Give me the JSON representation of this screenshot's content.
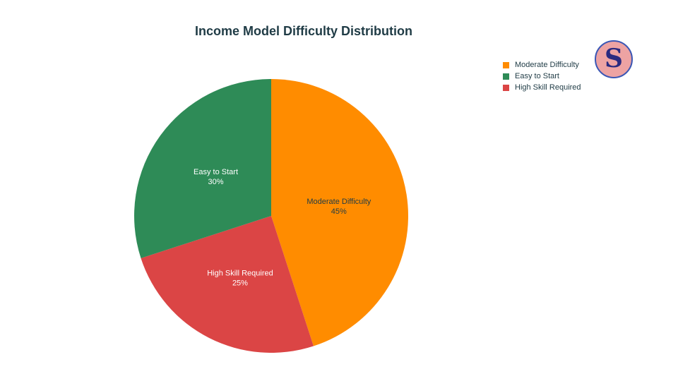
{
  "chart_data": {
    "type": "pie",
    "title": "Income Model Difficulty Distribution",
    "categories": [
      "Moderate Difficulty",
      "High Skill Required",
      "Easy to Start"
    ],
    "values": [
      45,
      25,
      30
    ],
    "labels": [
      "45%",
      "25%",
      "30%"
    ],
    "colors": [
      "#FF8C00",
      "#DB4545",
      "#2E8B57"
    ],
    "legend": {
      "placement": "top-right",
      "entries": [
        "Moderate Difficulty",
        "Easy to Start",
        "High Skill Required"
      ],
      "colors": [
        "#FF8C00",
        "#2E8B57",
        "#DB4545"
      ]
    },
    "label_colors": [
      "#1f3b45",
      "#ffffff",
      "#ffffff"
    ]
  },
  "logo": {
    "text": "SP"
  }
}
